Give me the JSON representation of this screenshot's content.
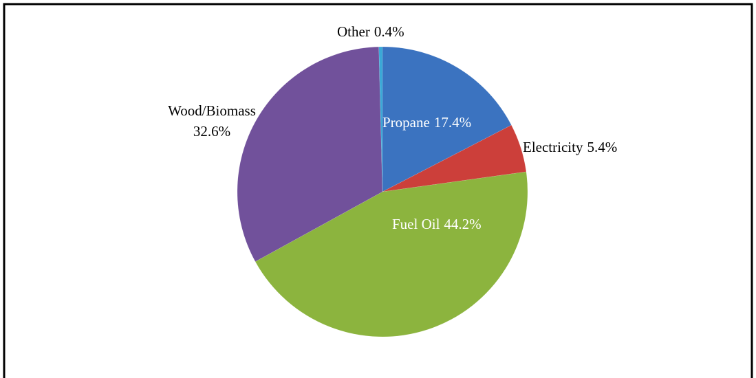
{
  "chart_data": {
    "type": "pie",
    "categories": [
      "Propane",
      "Electricity",
      "Fuel Oil",
      "Wood/Biomass",
      "Other"
    ],
    "values": [
      17.4,
      5.4,
      44.2,
      32.6,
      0.4
    ],
    "value_labels": [
      "17.4%",
      "5.4%",
      "44.2%",
      "32.6%",
      "0.4%"
    ],
    "colors": [
      "#3b73c0",
      "#cc3f3a",
      "#8cb43e",
      "#71519b",
      "#3ba8d6"
    ]
  }
}
